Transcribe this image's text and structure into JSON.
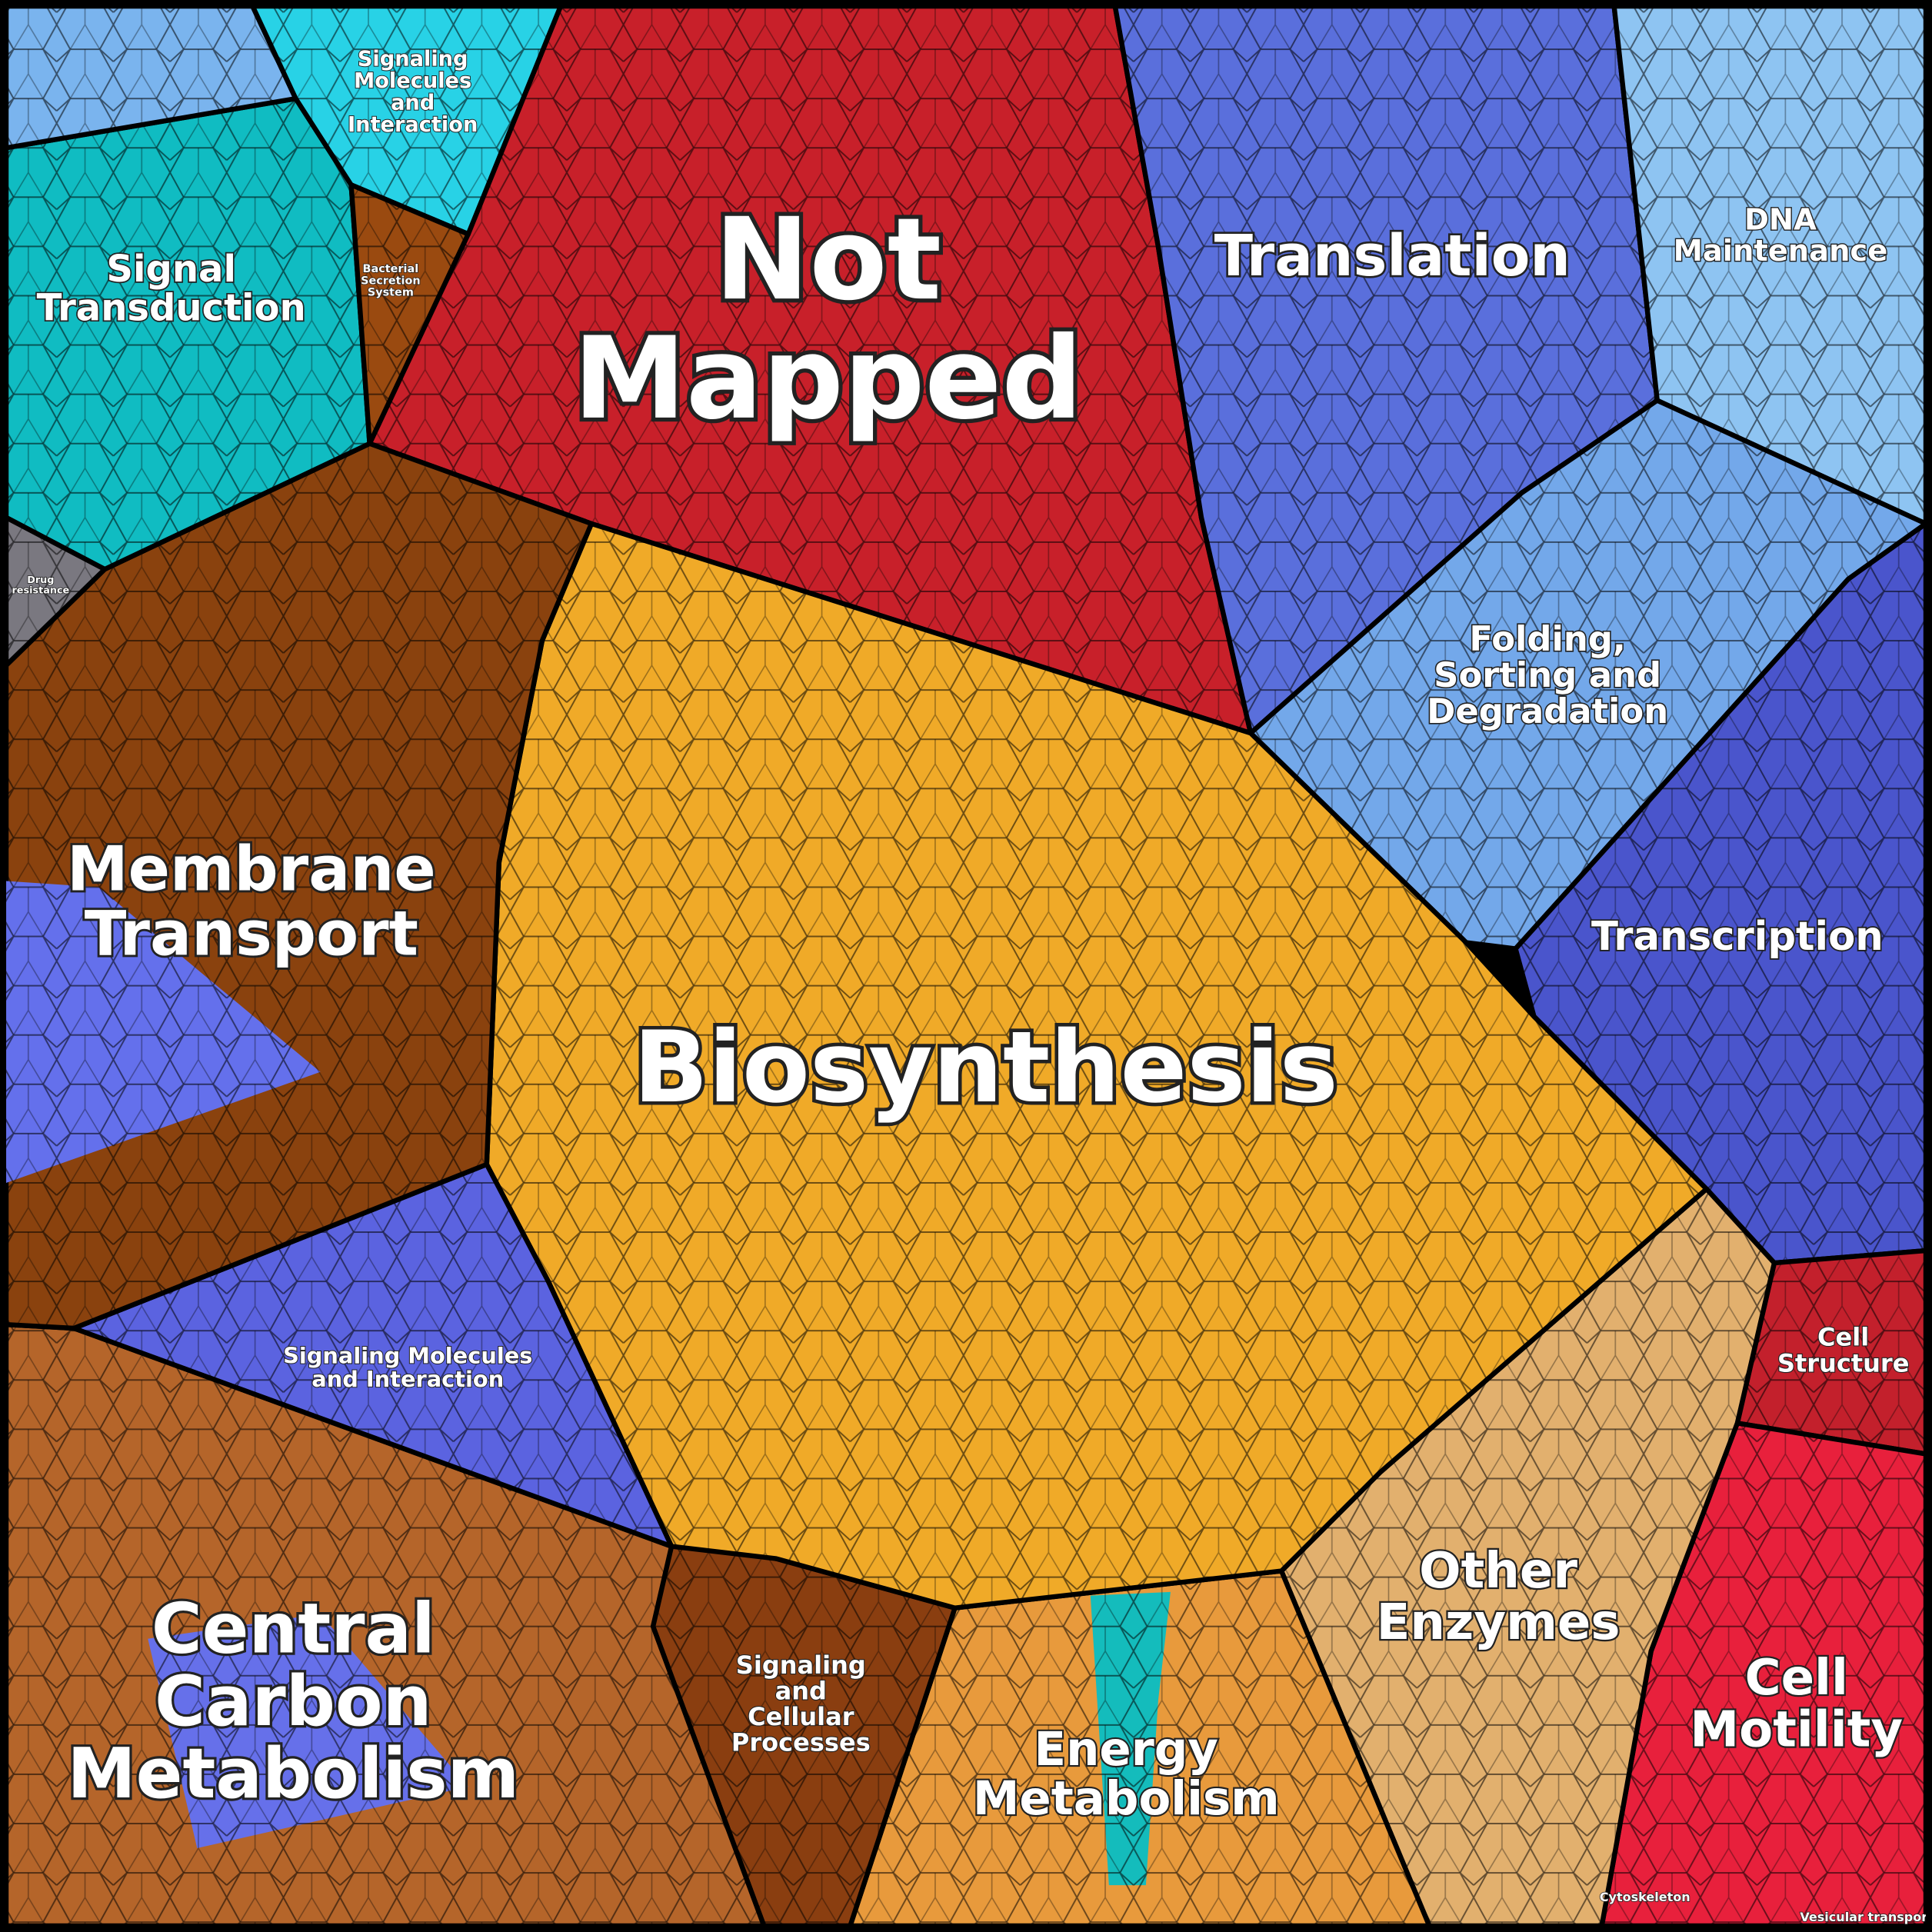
{
  "regions": [
    {
      "lines": [
        "Not",
        "Mapped"
      ]
    },
    {
      "lines": [
        "Biosynthesis"
      ]
    },
    {
      "lines": [
        "Membrane",
        "Transport"
      ]
    },
    {
      "lines": [
        "Central",
        "Carbon",
        "Metabolism"
      ]
    },
    {
      "lines": [
        "Translation"
      ]
    },
    {
      "lines": [
        "Transcription"
      ]
    },
    {
      "lines": [
        "Folding,",
        "Sorting and",
        "Degradation"
      ]
    },
    {
      "lines": [
        "DNA",
        "Maintenance"
      ]
    },
    {
      "lines": [
        "Other",
        "Enzymes"
      ]
    },
    {
      "lines": [
        "Cell",
        "Motility"
      ]
    },
    {
      "lines": [
        "Cell",
        "Structure"
      ]
    },
    {
      "lines": [
        "Energy",
        "Metabolism"
      ]
    },
    {
      "lines": [
        "Signaling",
        "and",
        "Cellular",
        "Processes"
      ]
    },
    {
      "lines": [
        "Signaling Molecules",
        "and Interaction"
      ]
    },
    {
      "lines": [
        "Signal",
        "Transduction"
      ]
    },
    {
      "lines": [
        "Signaling",
        "Molecules",
        "and",
        "Interaction"
      ]
    },
    {
      "lines": [
        "Bacterial",
        "Secretion",
        "System"
      ]
    },
    {
      "lines": [
        "Drug",
        "resistance"
      ]
    },
    {
      "lines": [
        "Cytoskeleton"
      ]
    },
    {
      "lines": [
        "Vesicular transport"
      ]
    }
  ]
}
